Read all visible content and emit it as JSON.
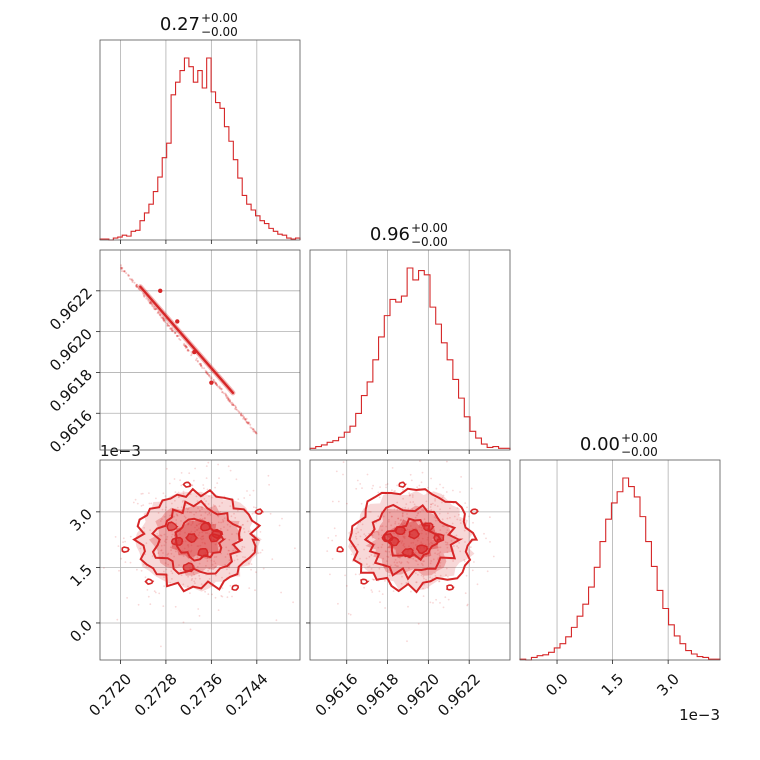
{
  "chart_data": {
    "type": "corner",
    "color": "#d62728",
    "parameters": [
      {
        "title_value": "0.27",
        "title_plus": "+0.00",
        "title_minus": "−0.00",
        "ticks": [
          0.272,
          0.2728,
          0.2736,
          0.2744
        ],
        "tick_labels": [
          "0.2720",
          "0.2728",
          "0.2736",
          "0.2744"
        ],
        "range": [
          0.27164,
          0.27516
        ],
        "offset_label": ""
      },
      {
        "title_value": "0.96",
        "title_plus": "+0.00",
        "title_minus": "−0.00",
        "ticks": [
          0.9616,
          0.9618,
          0.962,
          0.9622
        ],
        "tick_labels": [
          "0.9616",
          "0.9618",
          "0.9620",
          "0.9622"
        ],
        "range": [
          0.96142,
          0.9624
        ],
        "offset_label": ""
      },
      {
        "title_value": "0.00",
        "title_plus": "+0.00",
        "title_minus": "−0.00",
        "ticks": [
          0.0,
          1.5,
          3.0
        ],
        "tick_labels": [
          "0.0",
          "1.5",
          "3.0"
        ],
        "range": [
          -1.0,
          4.4
        ],
        "offset_label": "1e−3"
      }
    ],
    "histograms": [
      [
        1,
        1,
        0,
        2,
        3,
        5,
        4,
        9,
        10,
        20,
        28,
        37,
        50,
        65,
        85,
        100,
        150,
        163,
        175,
        188,
        179,
        163,
        175,
        157,
        188,
        153,
        142,
        136,
        117,
        102,
        83,
        64,
        46,
        37,
        31,
        25,
        20,
        17,
        12,
        9,
        6,
        5,
        2,
        1,
        2
      ],
      [
        2,
        4,
        6,
        9,
        11,
        15,
        21,
        28,
        43,
        64,
        80,
        106,
        133,
        158,
        177,
        174,
        181,
        214,
        200,
        211,
        206,
        168,
        148,
        126,
        106,
        83,
        61,
        39,
        22,
        14,
        7,
        3,
        4,
        2,
        2
      ],
      [
        1,
        0,
        3,
        5,
        6,
        9,
        14,
        19,
        27,
        38,
        51,
        65,
        85,
        108,
        138,
        164,
        183,
        196,
        212,
        202,
        190,
        167,
        138,
        109,
        81,
        60,
        41,
        28,
        19,
        11,
        7,
        4,
        3,
        1,
        1
      ]
    ],
    "contour_blobs_1_0": [
      {
        "x": 0.2727,
        "y": 0.9622
      },
      {
        "x": 0.273,
        "y": 0.96205
      },
      {
        "x": 0.2733,
        "y": 0.9619
      },
      {
        "x": 0.2736,
        "y": 0.96175
      }
    ],
    "contour_blobs_2_0": [
      {
        "x": 0.273,
        "y": 2.2
      },
      {
        "x": 0.27325,
        "y": 2.3
      },
      {
        "x": 0.27345,
        "y": 1.9
      },
      {
        "x": 0.27365,
        "y": 2.3
      },
      {
        "x": 0.2729,
        "y": 2.6
      },
      {
        "x": 0.2735,
        "y": 2.6
      },
      {
        "x": 0.2732,
        "y": 1.5
      },
      {
        "x": 0.2737,
        "y": 2.4
      }
    ],
    "contour_blobs_2_1": [
      {
        "x": 0.96186,
        "y": 2.5
      },
      {
        "x": 0.96183,
        "y": 2.2
      },
      {
        "x": 0.96193,
        "y": 2.4
      },
      {
        "x": 0.96197,
        "y": 2.0
      },
      {
        "x": 0.9618,
        "y": 2.3
      },
      {
        "x": 0.962,
        "y": 2.6
      },
      {
        "x": 0.9619,
        "y": 1.9
      },
      {
        "x": 0.96205,
        "y": 2.3
      }
    ]
  }
}
